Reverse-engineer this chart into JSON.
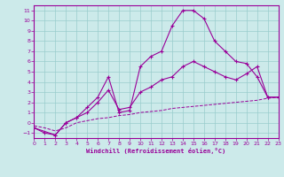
{
  "background_color": "#cceaea",
  "grid_color": "#99cccc",
  "line_color": "#990099",
  "xlim": [
    0,
    23
  ],
  "ylim": [
    -1.5,
    11.5
  ],
  "xticks": [
    0,
    1,
    2,
    3,
    4,
    5,
    6,
    7,
    8,
    9,
    10,
    11,
    12,
    13,
    14,
    15,
    16,
    17,
    18,
    19,
    20,
    21,
    22,
    23
  ],
  "yticks": [
    -1,
    0,
    1,
    2,
    3,
    4,
    5,
    6,
    7,
    8,
    9,
    10,
    11
  ],
  "xlabel": "Windchill (Refroidissement éolien,°C)",
  "curve1_x": [
    0,
    1,
    2,
    3,
    4,
    5,
    6,
    7,
    8,
    9,
    10,
    11,
    12,
    13,
    14,
    15,
    16,
    17,
    18,
    19,
    20,
    21,
    22,
    23
  ],
  "curve1_y": [
    -0.5,
    -1.0,
    -1.2,
    0.0,
    0.5,
    1.5,
    2.5,
    4.5,
    1.0,
    1.2,
    5.5,
    6.5,
    7.0,
    9.5,
    11.0,
    11.0,
    10.2,
    8.0,
    7.0,
    6.0,
    5.8,
    4.5,
    2.5,
    2.5
  ],
  "curve2_x": [
    0,
    2,
    3,
    4,
    5,
    6,
    7,
    8,
    9,
    10,
    11,
    12,
    13,
    14,
    15,
    16,
    17,
    18,
    19,
    20,
    21,
    22,
    23
  ],
  "curve2_y": [
    -0.5,
    -1.2,
    0.0,
    0.5,
    1.0,
    2.0,
    3.2,
    1.3,
    1.5,
    3.0,
    3.5,
    4.2,
    4.5,
    5.5,
    6.0,
    5.5,
    5.0,
    4.5,
    4.2,
    4.8,
    5.5,
    2.5,
    2.5
  ],
  "curve3_x": [
    0,
    1,
    2,
    3,
    4,
    5,
    6,
    7,
    8,
    9,
    10,
    11,
    12,
    13,
    14,
    15,
    16,
    17,
    18,
    19,
    20,
    21,
    22,
    23
  ],
  "curve3_y": [
    -0.3,
    -0.5,
    -0.8,
    -0.5,
    0.0,
    0.2,
    0.4,
    0.5,
    0.7,
    0.8,
    1.0,
    1.1,
    1.2,
    1.4,
    1.5,
    1.6,
    1.7,
    1.8,
    1.9,
    2.0,
    2.1,
    2.2,
    2.4,
    2.5
  ]
}
